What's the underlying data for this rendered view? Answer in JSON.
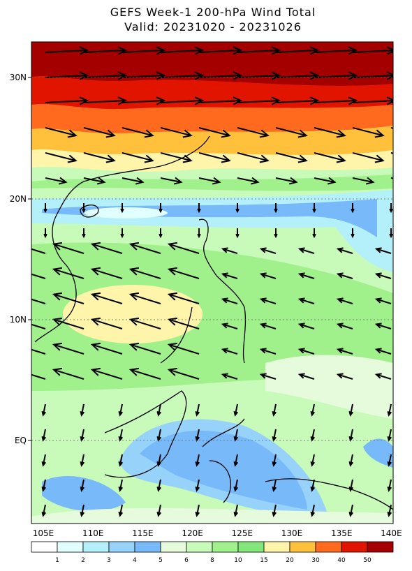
{
  "title": "GEFS Week-1 200-hPa Wind Total",
  "subtitle": "Valid: 20231020 - 20231026",
  "lat_labels": [
    "30N",
    "20N",
    "10N",
    "EQ"
  ],
  "lon_labels": [
    "105E",
    "110E",
    "115E",
    "120E",
    "125E",
    "130E",
    "135E",
    "140E"
  ],
  "colorbar": {
    "labels": [
      "1",
      "2",
      "3",
      "4",
      "5",
      "6",
      "8",
      "10",
      "15",
      "20",
      "30",
      "40",
      "50"
    ],
    "colors": [
      "#ffffff",
      "#e1ffff",
      "#b4f0fa",
      "#96d2fa",
      "#78b9fa",
      "#e6fadc",
      "#c8faba",
      "#a0f08c",
      "#82e67a",
      "#fff5aa",
      "#ffc03c",
      "#ff6a1e",
      "#e11400",
      "#a50000"
    ]
  }
}
